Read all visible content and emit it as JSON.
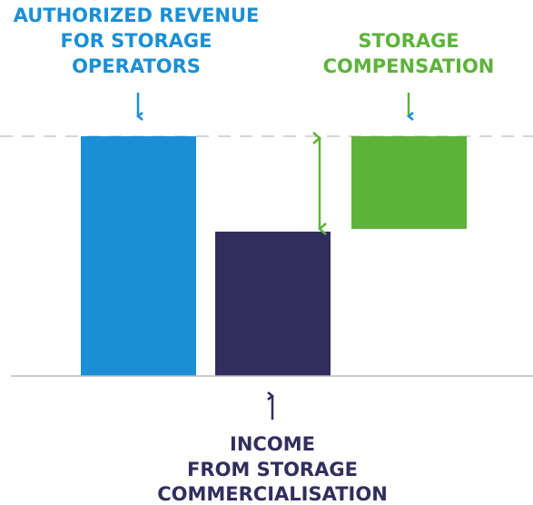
{
  "labels": {
    "authorized_revenue": [
      "AUTHORIZED REVENUE",
      "FOR STORAGE",
      "OPERATORS"
    ],
    "storage_compensation": [
      "STORAGE",
      "COMPENSATION"
    ],
    "income": [
      "INCOME",
      "FROM STORAGE",
      "COMMERCIALISATION"
    ]
  }
}
